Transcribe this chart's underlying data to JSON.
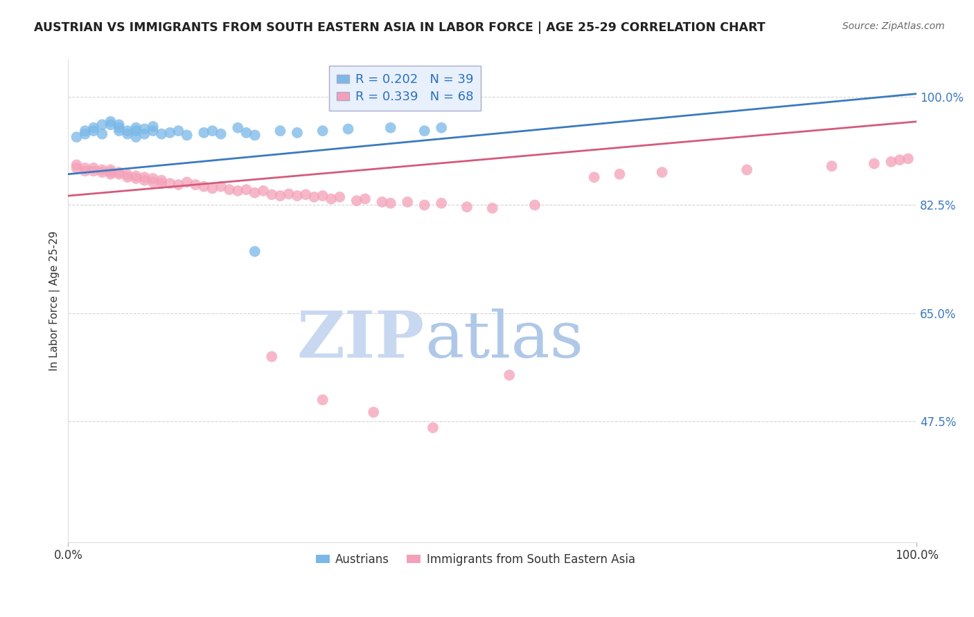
{
  "title": "AUSTRIAN VS IMMIGRANTS FROM SOUTH EASTERN ASIA IN LABOR FORCE | AGE 25-29 CORRELATION CHART",
  "source": "Source: ZipAtlas.com",
  "ylabel": "In Labor Force | Age 25-29",
  "blue_R": 0.202,
  "blue_N": 39,
  "pink_R": 0.339,
  "pink_N": 68,
  "blue_label": "Austrians",
  "pink_label": "Immigrants from South Eastern Asia",
  "blue_color": "#7ab8e8",
  "pink_color": "#f4a0b8",
  "blue_line_color": "#3a7abf",
  "pink_line_color": "#d45a7a",
  "blue_line_x0": 0.0,
  "blue_line_y0": 0.875,
  "blue_line_x1": 1.0,
  "blue_line_y1": 1.005,
  "pink_line_x0": 0.0,
  "pink_line_y0": 0.84,
  "pink_line_x1": 1.0,
  "pink_line_y1": 0.96,
  "xlim": [
    0.0,
    1.0
  ],
  "ylim": [
    0.28,
    1.06
  ],
  "yticks": [
    0.475,
    0.65,
    0.825,
    1.0
  ],
  "ytick_labels": [
    "47.5%",
    "65.0%",
    "82.5%",
    "100.0%"
  ],
  "blue_scatter_x": [
    0.01,
    0.02,
    0.02,
    0.03,
    0.03,
    0.04,
    0.04,
    0.05,
    0.05,
    0.06,
    0.06,
    0.06,
    0.07,
    0.07,
    0.08,
    0.08,
    0.08,
    0.09,
    0.09,
    0.1,
    0.1,
    0.11,
    0.12,
    0.13,
    0.14,
    0.16,
    0.17,
    0.18,
    0.2,
    0.21,
    0.22,
    0.25,
    0.27,
    0.3,
    0.33,
    0.38,
    0.42,
    0.22,
    0.44
  ],
  "blue_scatter_y": [
    0.935,
    0.94,
    0.945,
    0.95,
    0.945,
    0.955,
    0.94,
    0.955,
    0.96,
    0.945,
    0.95,
    0.955,
    0.945,
    0.94,
    0.935,
    0.945,
    0.95,
    0.94,
    0.948,
    0.945,
    0.952,
    0.94,
    0.942,
    0.945,
    0.938,
    0.942,
    0.945,
    0.94,
    0.95,
    0.942,
    0.938,
    0.945,
    0.942,
    0.945,
    0.948,
    0.95,
    0.945,
    0.75,
    0.95
  ],
  "pink_scatter_x": [
    0.01,
    0.01,
    0.02,
    0.02,
    0.03,
    0.03,
    0.04,
    0.04,
    0.05,
    0.05,
    0.05,
    0.06,
    0.06,
    0.07,
    0.07,
    0.08,
    0.08,
    0.09,
    0.09,
    0.1,
    0.1,
    0.11,
    0.11,
    0.12,
    0.13,
    0.14,
    0.15,
    0.16,
    0.17,
    0.18,
    0.19,
    0.2,
    0.21,
    0.22,
    0.23,
    0.24,
    0.25,
    0.26,
    0.27,
    0.28,
    0.29,
    0.3,
    0.31,
    0.32,
    0.34,
    0.35,
    0.37,
    0.38,
    0.4,
    0.42,
    0.44,
    0.47,
    0.5,
    0.55,
    0.24,
    0.3,
    0.36,
    0.43,
    0.52,
    0.62,
    0.65,
    0.7,
    0.8,
    0.9,
    0.95,
    0.97,
    0.98,
    0.99
  ],
  "pink_scatter_y": [
    0.885,
    0.89,
    0.88,
    0.885,
    0.88,
    0.885,
    0.878,
    0.882,
    0.875,
    0.878,
    0.882,
    0.875,
    0.878,
    0.87,
    0.874,
    0.872,
    0.868,
    0.87,
    0.865,
    0.868,
    0.862,
    0.865,
    0.86,
    0.86,
    0.858,
    0.862,
    0.858,
    0.855,
    0.852,
    0.855,
    0.85,
    0.848,
    0.85,
    0.845,
    0.848,
    0.842,
    0.84,
    0.843,
    0.84,
    0.842,
    0.838,
    0.84,
    0.835,
    0.838,
    0.832,
    0.835,
    0.83,
    0.828,
    0.83,
    0.825,
    0.828,
    0.822,
    0.82,
    0.825,
    0.58,
    0.51,
    0.49,
    0.465,
    0.55,
    0.87,
    0.875,
    0.878,
    0.882,
    0.888,
    0.892,
    0.895,
    0.898,
    0.9
  ],
  "background_color": "#ffffff",
  "grid_color": "#d0d0d0",
  "title_color": "#222222",
  "source_color": "#666666",
  "legend_box_facecolor": "#e8f0fb",
  "legend_box_edgecolor": "#aaaacc",
  "watermark_zip_color": "#c8d8f0",
  "watermark_atlas_color": "#b0c8e8",
  "legend_R_color": "#2a70c0",
  "legend_N_color": "#2a70c0"
}
